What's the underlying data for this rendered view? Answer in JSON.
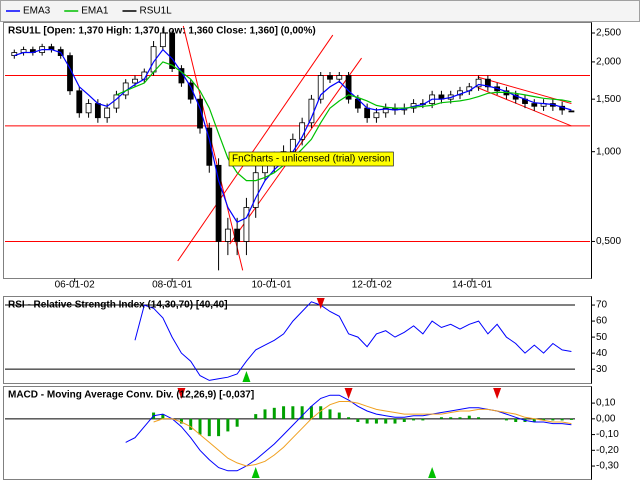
{
  "chart_data": [
    {
      "type": "candlestick",
      "title": "RSU1L [Open: 1,370  High: 1,370  Low: 1,360  Close: 1,360] (0,00%)",
      "watermark": "FnCharts - unlicensed (trial) version",
      "log_scale": true,
      "xlim": [
        -1,
        62
      ],
      "xticks": [
        {
          "value": 6.5,
          "label": "06-01-02"
        },
        {
          "value": 17,
          "label": "08-01-01"
        },
        {
          "value": 27.7,
          "label": "10-01-01"
        },
        {
          "value": 38.5,
          "label": "12-01-02"
        },
        {
          "value": 49.3,
          "label": "14-01-01"
        }
      ],
      "ylim": [
        0.38,
        2.68
      ],
      "yticks": [
        {
          "value": 0.5,
          "label": "0,500"
        },
        {
          "value": 1.0,
          "label": "1,000"
        },
        {
          "value": 1.5,
          "label": "1,500"
        },
        {
          "value": 2.0,
          "label": "2,000"
        },
        {
          "value": 2.5,
          "label": "2,500"
        }
      ],
      "hlines": [
        1.8,
        1.22,
        0.5
      ],
      "line_color": "#ff0000",
      "trendlines": [
        [
          18.2,
          2.64,
          24.6,
          0.4
        ],
        [
          17.6,
          0.43,
          34.3,
          2.46
        ],
        [
          23.2,
          0.49,
          37.4,
          2.06
        ],
        [
          49.9,
          1.78,
          60,
          1.45
        ],
        [
          49.9,
          1.64,
          60,
          1.22
        ]
      ],
      "ohlc": {
        "name": "RSU1L",
        "color": "#000000",
        "open": [
          2.1,
          2.15,
          2.2,
          2.15,
          2.25,
          2.2,
          2.1,
          1.6,
          1.35,
          1.45,
          1.3,
          1.4,
          1.55,
          1.7,
          1.75,
          1.85,
          2.25,
          2.5,
          1.9,
          1.7,
          1.5,
          1.2,
          0.9,
          0.5,
          0.55,
          0.5,
          0.65,
          0.85,
          0.9,
          0.95,
          1.0,
          1.1,
          1.25,
          1.5,
          1.8,
          1.75,
          1.8,
          1.5,
          1.4,
          1.3,
          1.35,
          1.4,
          1.38,
          1.4,
          1.45,
          1.45,
          1.55,
          1.5,
          1.55,
          1.6,
          1.65,
          1.75,
          1.65,
          1.6,
          1.55,
          1.5,
          1.45,
          1.42,
          1.45,
          1.42,
          1.37
        ],
        "high": [
          2.2,
          2.25,
          2.25,
          2.3,
          2.3,
          2.25,
          2.15,
          1.65,
          1.5,
          1.5,
          1.45,
          1.6,
          1.75,
          1.8,
          1.9,
          2.35,
          2.6,
          2.55,
          1.95,
          1.75,
          1.55,
          1.25,
          0.95,
          0.6,
          0.6,
          0.7,
          0.9,
          0.95,
          1.0,
          1.05,
          1.15,
          1.3,
          1.55,
          1.85,
          1.85,
          1.85,
          1.85,
          1.55,
          1.45,
          1.4,
          1.45,
          1.45,
          1.45,
          1.5,
          1.5,
          1.6,
          1.6,
          1.6,
          1.65,
          1.7,
          1.8,
          1.8,
          1.7,
          1.65,
          1.6,
          1.55,
          1.5,
          1.5,
          1.5,
          1.47,
          1.37
        ],
        "low": [
          2.05,
          2.1,
          2.1,
          2.1,
          2.15,
          2.05,
          1.55,
          1.3,
          1.3,
          1.25,
          1.25,
          1.35,
          1.5,
          1.65,
          1.7,
          1.8,
          2.2,
          1.85,
          1.65,
          1.45,
          1.15,
          0.85,
          0.4,
          0.45,
          0.45,
          0.45,
          0.6,
          0.8,
          0.85,
          0.9,
          0.95,
          1.05,
          1.2,
          1.45,
          1.7,
          1.7,
          1.45,
          1.35,
          1.25,
          1.25,
          1.3,
          1.33,
          1.33,
          1.35,
          1.4,
          1.4,
          1.45,
          1.45,
          1.5,
          1.55,
          1.6,
          1.6,
          1.55,
          1.5,
          1.45,
          1.4,
          1.37,
          1.37,
          1.37,
          1.33,
          1.36
        ],
        "close": [
          2.15,
          2.2,
          2.15,
          2.25,
          2.2,
          2.1,
          1.6,
          1.35,
          1.45,
          1.3,
          1.4,
          1.55,
          1.7,
          1.75,
          1.85,
          2.25,
          2.5,
          1.9,
          1.7,
          1.5,
          1.2,
          0.9,
          0.5,
          0.55,
          0.5,
          0.65,
          0.85,
          0.9,
          0.95,
          1.0,
          1.1,
          1.25,
          1.5,
          1.8,
          1.75,
          1.8,
          1.5,
          1.4,
          1.3,
          1.35,
          1.4,
          1.38,
          1.4,
          1.45,
          1.45,
          1.55,
          1.5,
          1.55,
          1.6,
          1.65,
          1.75,
          1.65,
          1.6,
          1.55,
          1.5,
          1.45,
          1.42,
          1.45,
          1.42,
          1.38,
          1.36
        ]
      },
      "series": [
        {
          "name": "EMA3",
          "color": "#0000ff",
          "values": [
            2.1,
            2.15,
            2.15,
            2.2,
            2.2,
            2.15,
            1.9,
            1.65,
            1.55,
            1.45,
            1.42,
            1.5,
            1.6,
            1.68,
            1.75,
            2.0,
            2.2,
            2.05,
            1.85,
            1.65,
            1.4,
            1.1,
            0.8,
            0.65,
            0.58,
            0.6,
            0.7,
            0.8,
            0.87,
            0.93,
            1.0,
            1.12,
            1.3,
            1.55,
            1.65,
            1.72,
            1.6,
            1.5,
            1.4,
            1.38,
            1.39,
            1.38,
            1.39,
            1.42,
            1.44,
            1.5,
            1.5,
            1.52,
            1.56,
            1.6,
            1.68,
            1.66,
            1.63,
            1.59,
            1.54,
            1.5,
            1.46,
            1.45,
            1.44,
            1.41,
            1.38
          ]
        },
        {
          "name": "EMA1",
          "color": "#00c000",
          "values": [
            null,
            null,
            null,
            null,
            null,
            null,
            null,
            null,
            null,
            null,
            null,
            1.55,
            1.6,
            1.65,
            1.7,
            1.85,
            2.0,
            1.95,
            1.85,
            1.75,
            1.6,
            1.4,
            1.15,
            0.95,
            0.85,
            0.8,
            0.8,
            0.82,
            0.85,
            0.9,
            0.95,
            1.02,
            1.1,
            1.25,
            1.4,
            1.48,
            1.55,
            1.52,
            1.48,
            1.43,
            1.41,
            1.4,
            1.4,
            1.41,
            1.42,
            1.43,
            1.46,
            1.47,
            1.48,
            1.5,
            1.53,
            1.57,
            1.58,
            1.58,
            1.57,
            1.55,
            1.53,
            1.51,
            1.5,
            1.49,
            1.47
          ]
        }
      ]
    },
    {
      "type": "line",
      "title": "RSI - Relative Strength Index (14,30,70) [40,40]",
      "xlim": [
        -1,
        62
      ],
      "ylim": [
        22,
        74.4
      ],
      "yticks": [
        30,
        40,
        50,
        60,
        70
      ],
      "levels": [
        70,
        30
      ],
      "series": [
        {
          "color": "#0000ff",
          "values": [
            null,
            null,
            null,
            null,
            null,
            null,
            null,
            null,
            null,
            null,
            null,
            null,
            null,
            48,
            70,
            68,
            62,
            50,
            40,
            35,
            26,
            23,
            24,
            25,
            27,
            35,
            42,
            45,
            48,
            52,
            60,
            66,
            72,
            70,
            66,
            63,
            52,
            50,
            44,
            52,
            54,
            50,
            53,
            57,
            52,
            60,
            56,
            58,
            55,
            58,
            60,
            52,
            58,
            50,
            46,
            40,
            45,
            40,
            46,
            42,
            41
          ]
        }
      ],
      "buy_signals": [
        25
      ],
      "sell_signals": [
        33
      ]
    },
    {
      "type": "macd",
      "title": "MACD - Moving Average Conv. Div. (12,26,9) [-0,037]",
      "xlim": [
        -1,
        62
      ],
      "ylim": [
        -0.376,
        0.196
      ],
      "yticks": [
        {
          "value": -0.3,
          "label": "-0,30"
        },
        {
          "value": -0.2,
          "label": "-0,20"
        },
        {
          "value": -0.1,
          "label": "-0,10"
        },
        {
          "value": 0.0,
          "label": "0,00"
        },
        {
          "value": 0.1,
          "label": "0,10"
        }
      ],
      "histogram": {
        "color": "#00a000",
        "values": [
          null,
          null,
          null,
          null,
          null,
          null,
          null,
          null,
          null,
          null,
          null,
          null,
          null,
          null,
          null,
          0.04,
          0.03,
          0.0,
          -0.03,
          -0.07,
          -0.1,
          -0.11,
          -0.11,
          -0.08,
          -0.05,
          0.0,
          0.03,
          0.06,
          0.07,
          0.08,
          0.08,
          0.08,
          0.08,
          0.08,
          0.06,
          0.04,
          0.01,
          -0.02,
          -0.03,
          -0.03,
          -0.03,
          -0.03,
          -0.02,
          -0.01,
          -0.01,
          0.0,
          0.01,
          0.01,
          0.01,
          0.02,
          0.01,
          0.0,
          0.0,
          -0.01,
          -0.02,
          -0.02,
          -0.02,
          -0.01,
          -0.01,
          -0.01,
          -0.007
        ]
      },
      "series": [
        {
          "color": "#0000ff",
          "values": [
            null,
            null,
            null,
            null,
            null,
            null,
            null,
            null,
            null,
            null,
            null,
            null,
            -0.15,
            -0.12,
            -0.05,
            0.02,
            0.03,
            0.0,
            -0.05,
            -0.12,
            -0.2,
            -0.26,
            -0.31,
            -0.33,
            -0.33,
            -0.3,
            -0.26,
            -0.21,
            -0.16,
            -0.1,
            -0.04,
            0.02,
            0.08,
            0.13,
            0.15,
            0.15,
            0.12,
            0.08,
            0.05,
            0.03,
            0.02,
            0.01,
            0.01,
            0.02,
            0.02,
            0.03,
            0.04,
            0.05,
            0.06,
            0.07,
            0.07,
            0.06,
            0.05,
            0.03,
            0.01,
            -0.01,
            -0.02,
            -0.02,
            -0.03,
            -0.03,
            -0.037
          ]
        },
        {
          "color": "#f0a020",
          "values": [
            null,
            null,
            null,
            null,
            null,
            null,
            null,
            null,
            null,
            null,
            null,
            null,
            null,
            null,
            null,
            -0.02,
            0.0,
            0.0,
            -0.02,
            -0.05,
            -0.1,
            -0.15,
            -0.2,
            -0.25,
            -0.28,
            -0.3,
            -0.29,
            -0.27,
            -0.23,
            -0.18,
            -0.12,
            -0.06,
            0.0,
            0.05,
            0.09,
            0.11,
            0.11,
            0.1,
            0.08,
            0.06,
            0.05,
            0.04,
            0.03,
            0.03,
            0.03,
            0.03,
            0.03,
            0.04,
            0.05,
            0.05,
            0.06,
            0.06,
            0.05,
            0.04,
            0.03,
            0.01,
            0.0,
            -0.01,
            -0.02,
            -0.02,
            -0.03
          ]
        }
      ],
      "buy_signals": [
        26,
        45
      ],
      "sell_signals": [
        18,
        36,
        52
      ]
    }
  ]
}
